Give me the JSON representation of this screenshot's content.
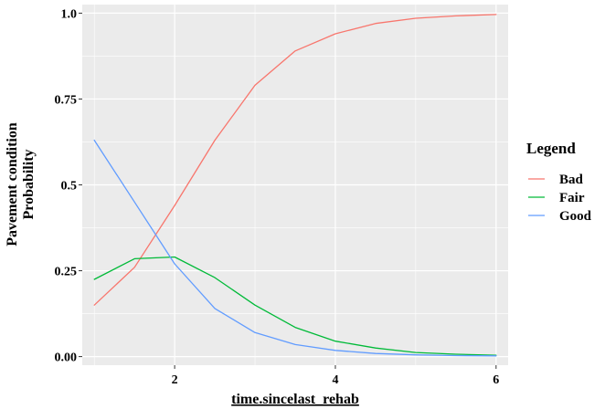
{
  "chart_data": {
    "type": "line",
    "title": "",
    "xlabel": "time.sincelast_rehab",
    "ylabel_lines": [
      "Pavement condition",
      "Probability"
    ],
    "xlim": [
      0.85,
      6.15
    ],
    "ylim": [
      -0.025,
      1.025
    ],
    "x_ticks": [
      2,
      4,
      6
    ],
    "x_tick_labels": [
      "2",
      "4",
      "6"
    ],
    "x_minor_ticks": [
      1,
      3,
      5
    ],
    "y_ticks": [
      0.0,
      0.25,
      0.5,
      0.75,
      1.0
    ],
    "y_tick_labels": [
      "0.00",
      "0.25",
      "0.5",
      "0.75",
      "1.0"
    ],
    "y_minor_ticks": [
      0.125,
      0.375,
      0.625,
      0.875
    ],
    "grid": true,
    "panel_background": "#ebebeb",
    "grid_color": "#ffffff",
    "legend": {
      "title": "Legend",
      "placement": "right"
    },
    "x": [
      1.0,
      1.5,
      2.0,
      2.5,
      3.0,
      3.5,
      4.0,
      4.5,
      5.0,
      5.5,
      6.0
    ],
    "series": [
      {
        "name": "Bad",
        "color": "#f8766d",
        "values": [
          0.15,
          0.26,
          0.44,
          0.63,
          0.79,
          0.89,
          0.94,
          0.97,
          0.985,
          0.992,
          0.996
        ]
      },
      {
        "name": "Fair",
        "color": "#00ba38",
        "values": [
          0.225,
          0.285,
          0.29,
          0.23,
          0.15,
          0.085,
          0.045,
          0.025,
          0.012,
          0.007,
          0.004
        ]
      },
      {
        "name": "Good",
        "color": "#619cff",
        "values": [
          0.63,
          0.45,
          0.27,
          0.14,
          0.07,
          0.035,
          0.018,
          0.009,
          0.005,
          0.003,
          0.002
        ]
      }
    ]
  }
}
